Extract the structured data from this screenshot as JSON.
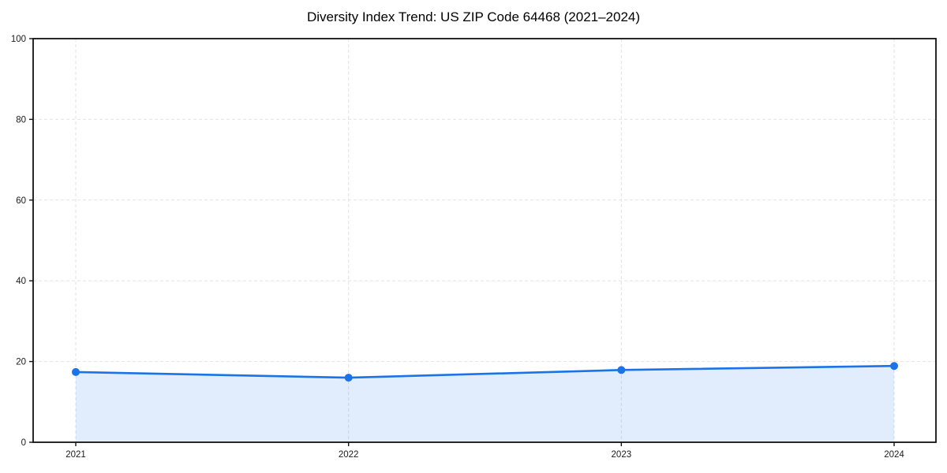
{
  "title": "Diversity Index Trend: US ZIP Code 64468 (2021–2024)",
  "chart_data": {
    "type": "area",
    "title": "Diversity Index Trend: US ZIP Code 64468 (2021–2024)",
    "categories": [
      "2021",
      "2022",
      "2023",
      "2024"
    ],
    "series": [
      {
        "name": "Diversity Index",
        "values": [
          17.4,
          16.0,
          17.9,
          18.9
        ]
      }
    ],
    "xlabel": "",
    "ylabel": "",
    "ylim": [
      0,
      100
    ],
    "yticks": [
      0,
      20,
      40,
      60,
      80,
      100
    ],
    "y_tick_labels": [
      "0",
      "20",
      "40",
      "60",
      "80",
      "100"
    ],
    "grid": true,
    "grid_style": "dashed",
    "legend": "none",
    "colors": {
      "line": "#1a73e8",
      "marker": "#1a73e8",
      "area_fill": "rgba(26,115,232,0.13)",
      "gridline": "#e2e2e2",
      "axis_frame": "#111111",
      "tick_text": "#1a1a1a",
      "background": "#ffffff"
    }
  }
}
